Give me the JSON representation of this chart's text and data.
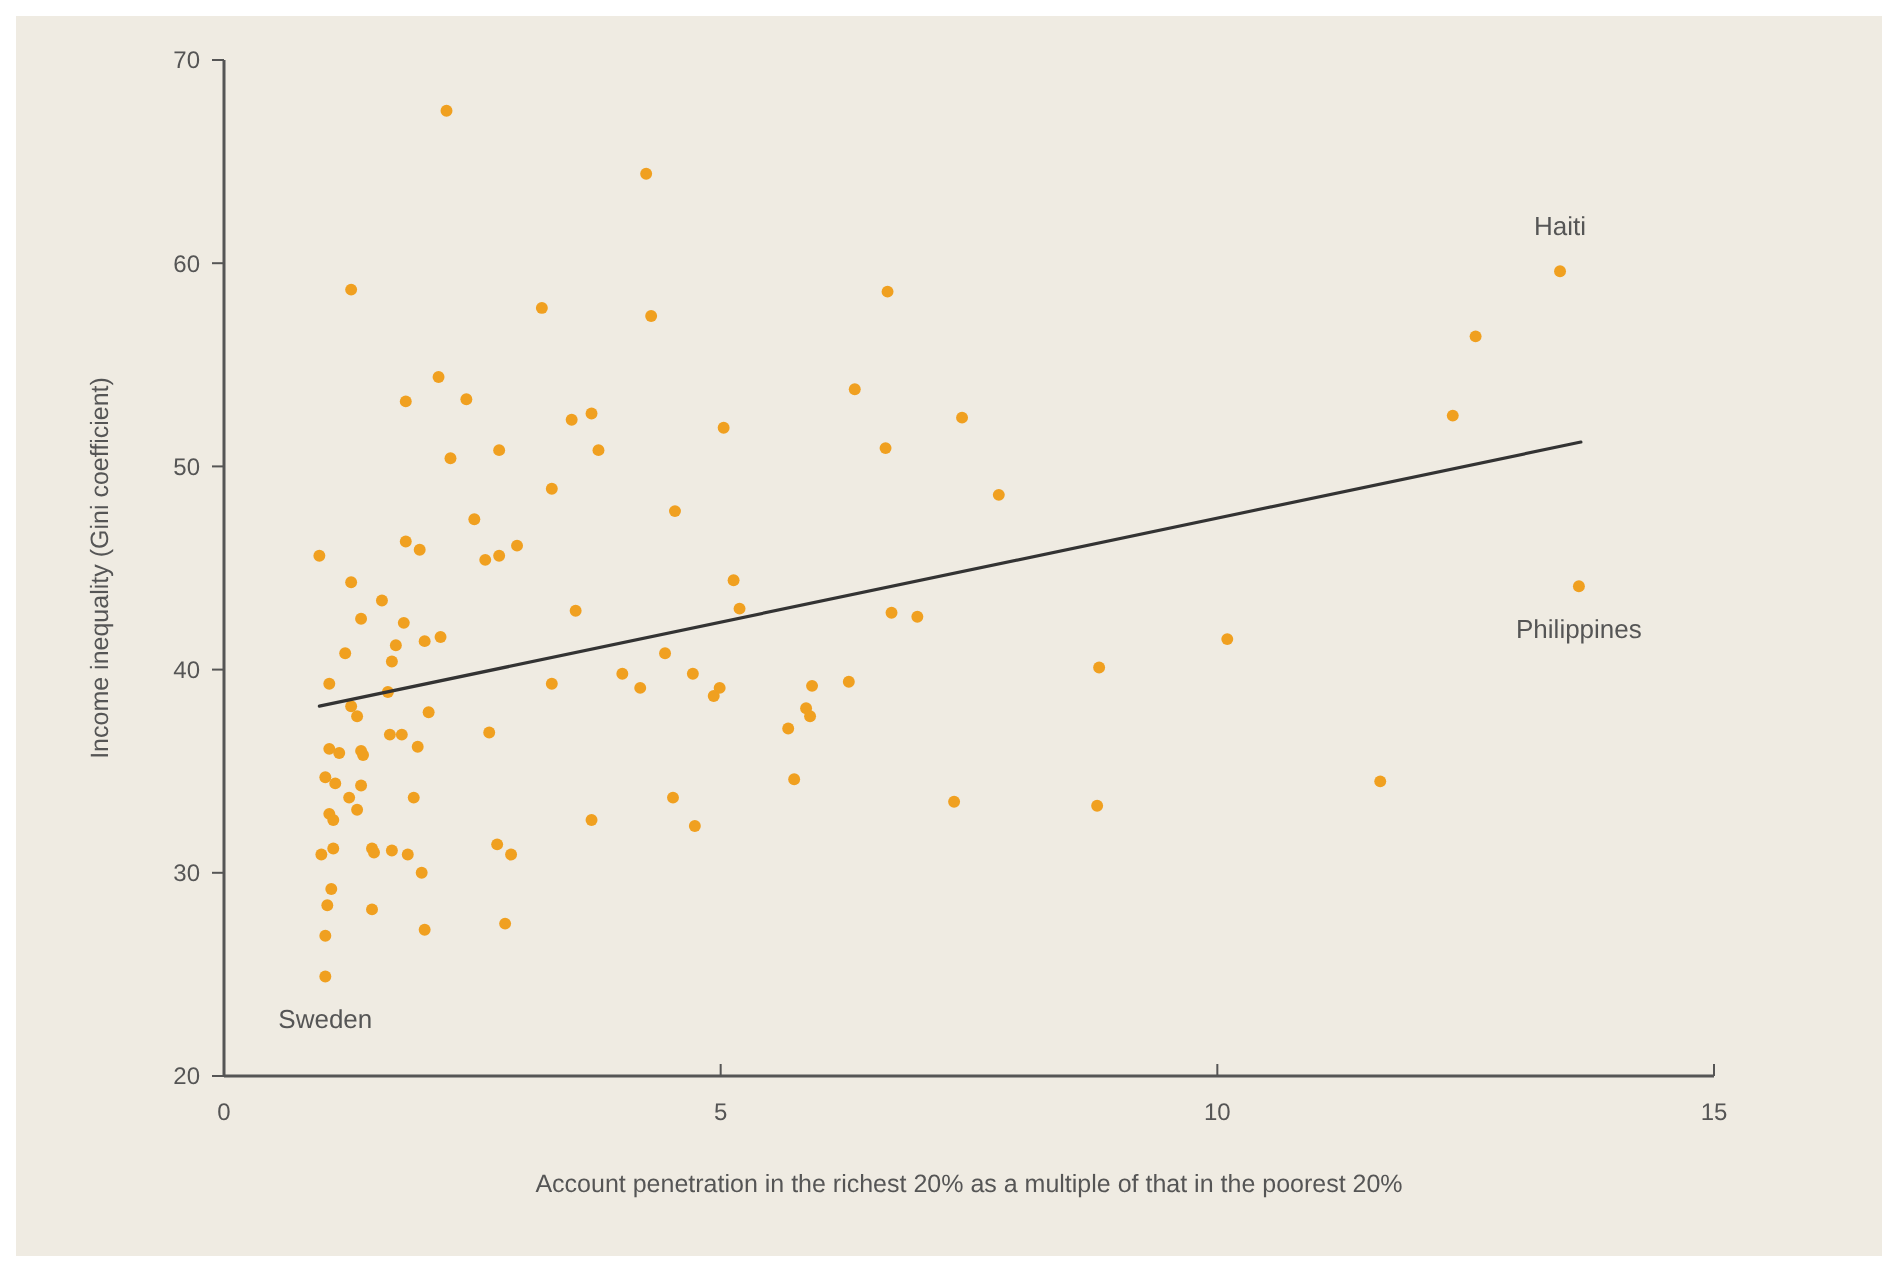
{
  "chart_data": {
    "type": "scatter",
    "xlabel": "Account penetration in the richest 20% as a multiple of that in the poorest 20%",
    "ylabel": "Income inequality  (Gini coefficient)",
    "xlim": [
      0,
      15
    ],
    "ylim": [
      20,
      70
    ],
    "xticks": [
      0,
      5,
      10,
      15
    ],
    "yticks": [
      20,
      30,
      40,
      50,
      60,
      70
    ],
    "grid": false,
    "annotations": [
      {
        "text": "Haiti",
        "x": 13.45,
        "y": 59.6
      },
      {
        "text": "Philippines",
        "x": 13.64,
        "y": 44.1
      },
      {
        "text": "Sweden",
        "x": 1.02,
        "y": 24.9
      }
    ],
    "series": [
      {
        "marker": "circle",
        "color": "#f0a020",
        "x": [
          4.25,
          4.3,
          6.68,
          3.5,
          3.7,
          3.77,
          5.03,
          6.35,
          7.43,
          6.66,
          7.8,
          4.54,
          3.54,
          5.13,
          5.19,
          6.72,
          6.98,
          4.44,
          4.01,
          4.19,
          4.72,
          4.99,
          4.93,
          5.92,
          6.29,
          5.86,
          5.9,
          5.68,
          8.81,
          5.74,
          4.52,
          4.74,
          3.7,
          7.35,
          8.79,
          2.24,
          1.28,
          3.2,
          2.16,
          1.83,
          2.44,
          2.28,
          2.77,
          3.3,
          2.52,
          1.83,
          1.97,
          0.96,
          2.63,
          2.77,
          2.95,
          1.28,
          1.59,
          1.38,
          1.81,
          1.22,
          1.73,
          1.69,
          2.02,
          2.18,
          1.06,
          3.3,
          1.28,
          1.34,
          1.65,
          2.06,
          2.67,
          1.06,
          1.16,
          1.38,
          1.4,
          1.67,
          1.79,
          1.95,
          1.02,
          1.12,
          1.38,
          1.26,
          1.34,
          1.06,
          1.1,
          1.91,
          0.98,
          1.1,
          1.49,
          1.51,
          1.69,
          1.85,
          1.99,
          2.75,
          2.89,
          1.08,
          1.04,
          1.49,
          1.02,
          2.02,
          2.83,
          1.02,
          13.45,
          12.6,
          12.37,
          13.64,
          10.1,
          11.64
        ],
        "values": [
          64.4,
          57.4,
          58.6,
          52.3,
          52.6,
          50.8,
          51.9,
          53.8,
          52.4,
          50.9,
          48.6,
          47.8,
          42.9,
          44.4,
          43.0,
          42.8,
          42.6,
          40.8,
          39.8,
          39.1,
          39.8,
          39.1,
          38.7,
          39.2,
          39.4,
          38.1,
          37.7,
          37.1,
          40.1,
          34.6,
          33.7,
          32.3,
          32.6,
          33.5,
          33.3,
          67.5,
          58.7,
          57.8,
          54.4,
          53.2,
          53.3,
          50.4,
          50.8,
          48.9,
          47.4,
          46.3,
          45.9,
          45.6,
          45.4,
          45.6,
          46.1,
          44.3,
          43.4,
          42.5,
          42.3,
          40.8,
          41.2,
          40.4,
          41.4,
          41.6,
          39.3,
          39.3,
          38.2,
          37.7,
          38.9,
          37.9,
          36.9,
          36.1,
          35.9,
          36.0,
          35.8,
          36.8,
          36.8,
          36.2,
          34.7,
          34.4,
          34.3,
          33.7,
          33.1,
          32.9,
          32.6,
          33.7,
          30.9,
          31.2,
          31.2,
          31.0,
          31.1,
          30.9,
          30.0,
          31.4,
          30.9,
          29.2,
          28.4,
          28.2,
          26.9,
          27.2,
          27.5,
          24.9,
          59.6,
          56.4,
          52.5,
          44.1,
          41.5,
          34.5
        ]
      },
      {
        "type": "line",
        "color": "#333333",
        "x": [
          0.96,
          13.66
        ],
        "values": [
          38.2,
          51.2
        ]
      }
    ]
  }
}
